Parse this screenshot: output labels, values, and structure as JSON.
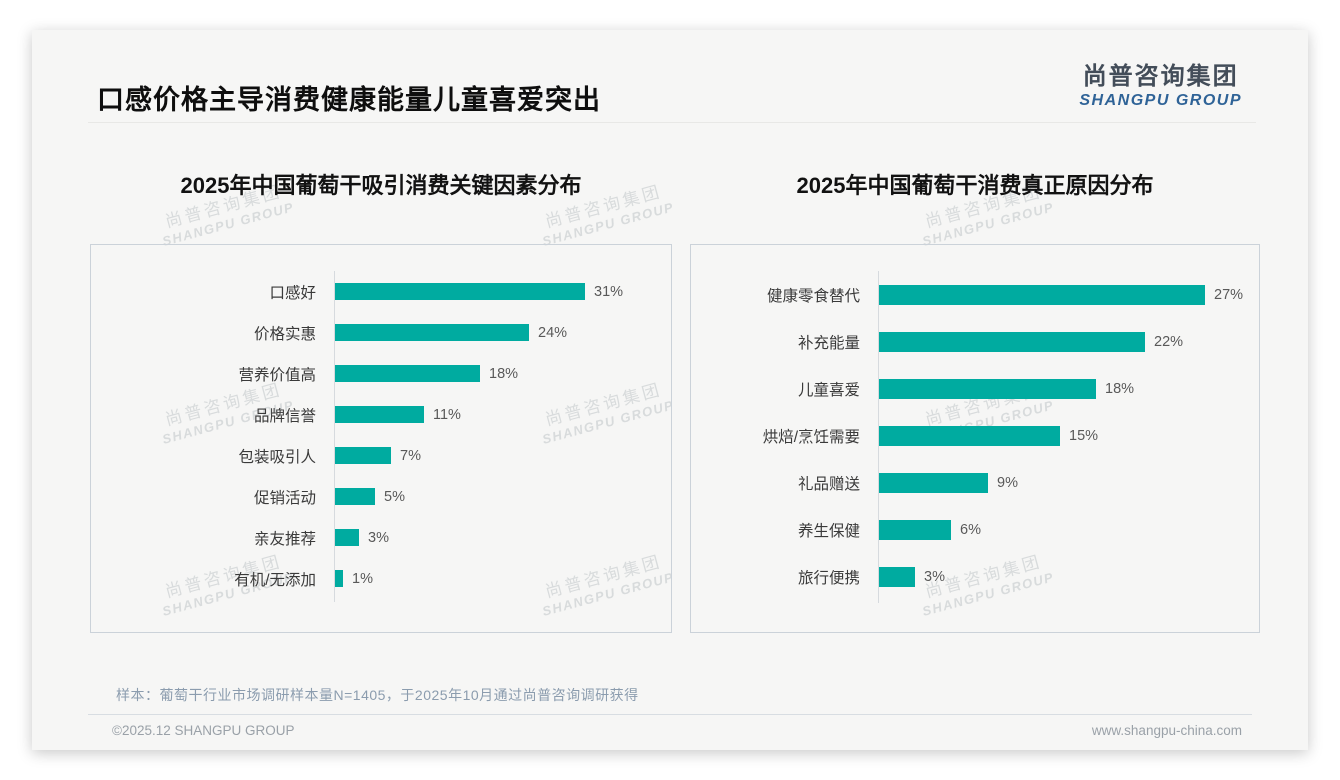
{
  "page": {
    "title": "口感价格主导消费健康能量儿童喜爱突出",
    "logo": {
      "cn": "尚普咨询集团",
      "en": "SHANGPU GROUP"
    },
    "watermark": {
      "cn": "尚普咨询集团",
      "en": "SHANGPU GROUP"
    },
    "footer": {
      "note": "样本：葡萄干行业市场调研样本量N=1405，于2025年10月通过尚普咨询调研获得",
      "copyright": "©2025.12 SHANGPU GROUP",
      "website": "www.shangpu-china.com"
    },
    "colors": {
      "bar_teal": "#00ABA0",
      "logo_blue": "#2F6397",
      "logo_dark": "#434D59"
    }
  },
  "chart_data": [
    {
      "type": "bar",
      "orientation": "horizontal",
      "title": "2025年中国葡萄干吸引消费关键因素分布",
      "categories": [
        "口感好",
        "价格实惠",
        "营养价值高",
        "品牌信誉",
        "包装吸引人",
        "促销活动",
        "亲友推荐",
        "有机/无添加"
      ],
      "values": [
        31,
        24,
        18,
        11,
        7,
        5,
        3,
        1
      ],
      "unit": "%",
      "data_labels": [
        "31%",
        "24%",
        "18%",
        "11%",
        "7%",
        "5%",
        "3%",
        "1%"
      ],
      "bar_color": "#00ABA0",
      "xlim": [
        0,
        35
      ],
      "grid": false,
      "legend": false
    },
    {
      "type": "bar",
      "orientation": "horizontal",
      "title": "2025年中国葡萄干消费真正原因分布",
      "categories": [
        "健康零食替代",
        "补充能量",
        "儿童喜爱",
        "烘焙/烹饪需要",
        "礼品赠送",
        "养生保健",
        "旅行便携"
      ],
      "values": [
        27,
        22,
        18,
        15,
        9,
        6,
        3
      ],
      "unit": "%",
      "data_labels": [
        "27%",
        "22%",
        "18%",
        "15%",
        "9%",
        "6%",
        "3%"
      ],
      "bar_color": "#00ABA0",
      "xlim": [
        0,
        30
      ],
      "grid": false,
      "legend": false
    }
  ]
}
